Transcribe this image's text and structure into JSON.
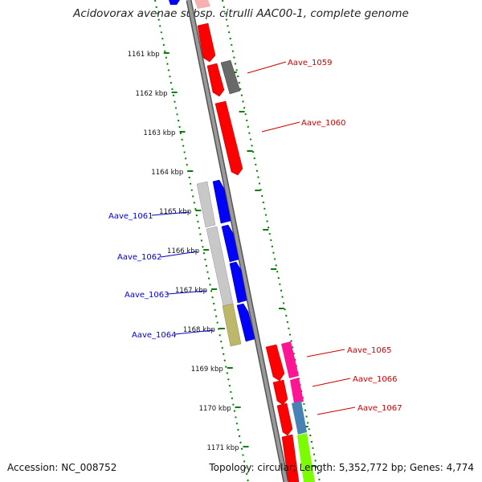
{
  "title": "Acidovorax avenae subsp. citrulli AAC00-1, complete genome",
  "footer": {
    "accession": "Accession: NC_008752",
    "summary": "Topology: circular; Length: 5,352,772 bp; Genes: 4,774"
  },
  "ruler": {
    "unit": "kbp",
    "ticks": [
      "1161 kbp",
      "1162 kbp",
      "1163 kbp",
      "1164 kbp",
      "1165 kbp",
      "1166 kbp",
      "1167 kbp",
      "1168 kbp",
      "1169 kbp",
      "1170 kbp",
      "1171 kbp"
    ]
  },
  "genes": {
    "forward": [
      {
        "label": "Aave_1061",
        "color": "#0000ff"
      },
      {
        "label": "Aave_1062",
        "color": "#0000ff"
      },
      {
        "label": "Aave_1063",
        "color": "#0000ff"
      },
      {
        "label": "Aave_1064",
        "color": "#0000ff"
      }
    ],
    "reverse": [
      {
        "label": "Aave_1059",
        "color": "#ff0000"
      },
      {
        "label": "Aave_1060",
        "color": "#ff0000"
      },
      {
        "label": "Aave_1065",
        "color": "#ff0000"
      },
      {
        "label": "Aave_1066",
        "color": "#ff0000"
      },
      {
        "label": "Aave_1067",
        "color": "#ff0000"
      }
    ]
  },
  "colors": {
    "backbone": "#808080",
    "forward_gene": "#0000ff",
    "reverse_gene": "#ff0000",
    "cog_gray": "#696969",
    "cog_lightgray": "#c8c8c8",
    "cog_khaki": "#bdb76b",
    "cog_magenta": "#ff1493",
    "cog_steelblue": "#4682b4",
    "cog_lime": "#7cfc00",
    "ruler_green": "#008000",
    "label_blue": "#0000cc",
    "label_red": "#cc0000"
  }
}
